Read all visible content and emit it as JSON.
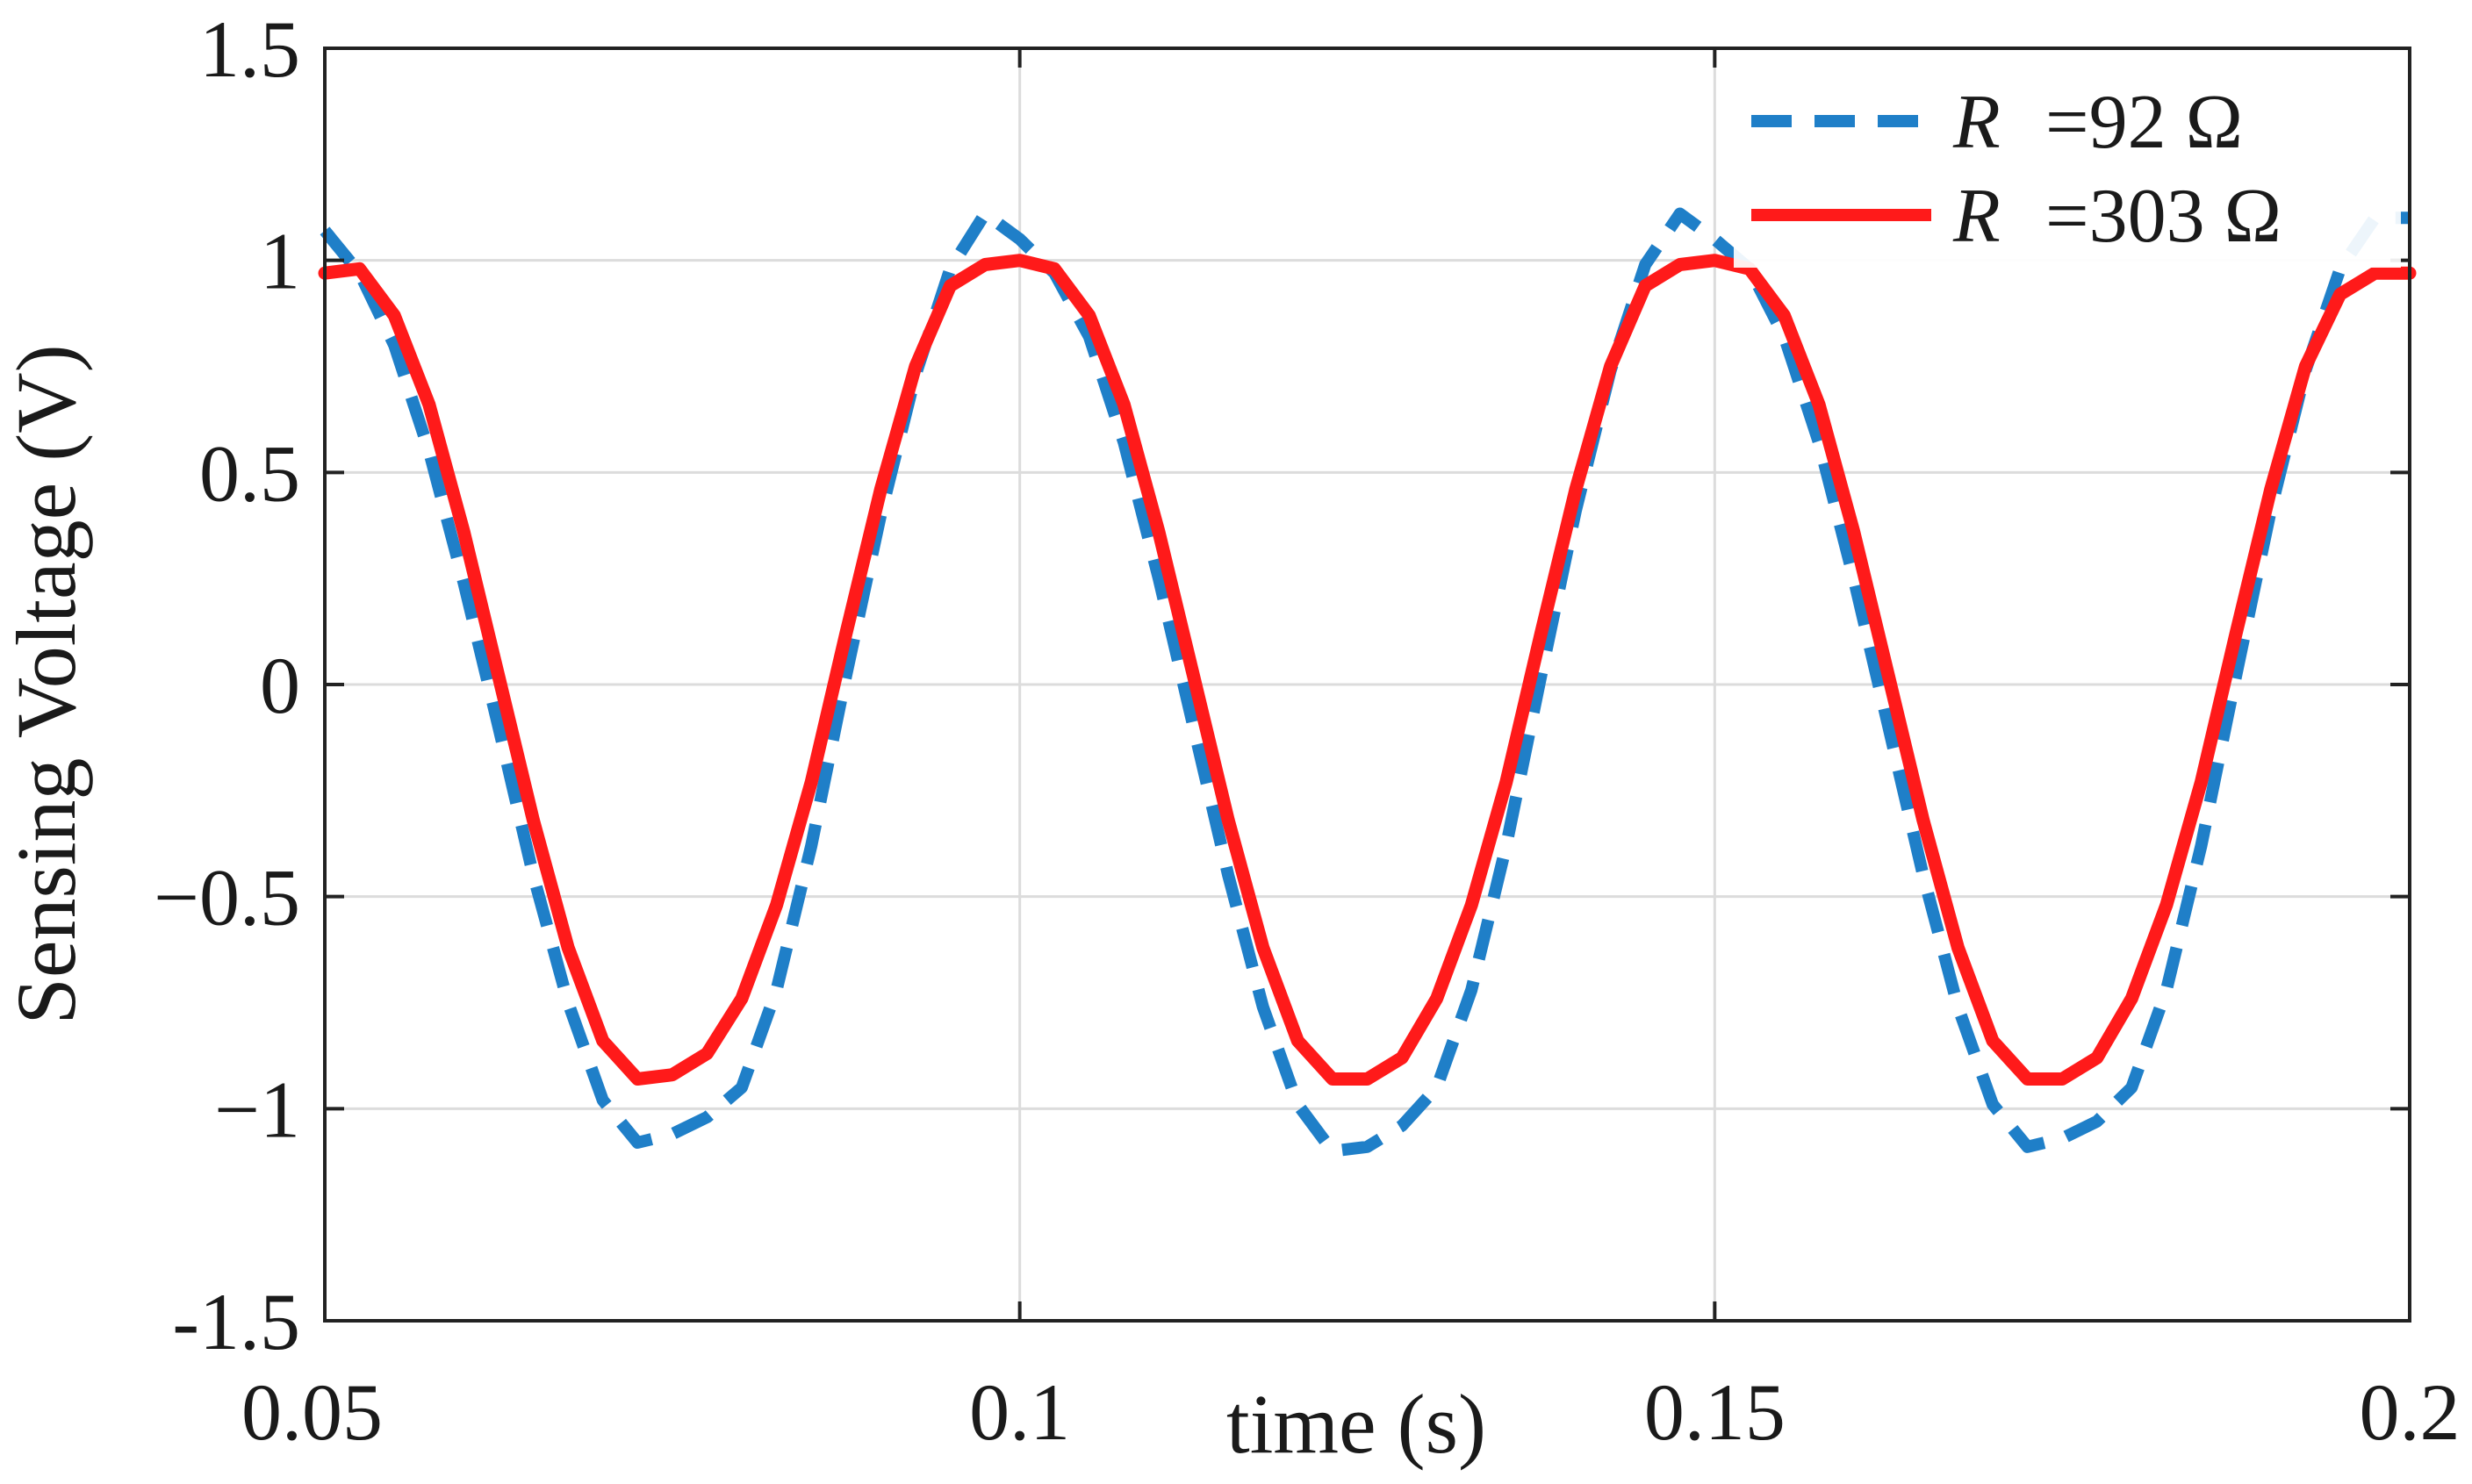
{
  "chart_data": {
    "type": "line",
    "title": "",
    "xlabel": "time (s)",
    "ylabel": "Sensing Voltage (V)",
    "xlim": [
      0.05,
      0.2
    ],
    "ylim": [
      -1.5,
      1.5
    ],
    "grid": true,
    "legend_position": "top-right",
    "x_ticks": [
      0.05,
      0.1,
      0.15,
      0.2
    ],
    "x_tick_labels": [
      "0.05",
      "0.1",
      "0.15",
      "0.2"
    ],
    "y_ticks": [
      1.5,
      1,
      0.5,
      0,
      -0.5,
      -1,
      -1.5
    ],
    "y_tick_labels": [
      "1.5",
      "1",
      "0.5",
      "0",
      "−0.5",
      "−1",
      "-1.5"
    ],
    "series": [
      {
        "name": "R =92 Ω",
        "legend_symbol": "R",
        "legend_value": "=92 Ω",
        "style": "dashed",
        "color": "#1f7fc8",
        "x": [
          0.05,
          0.0525,
          0.055,
          0.0575,
          0.06,
          0.0625,
          0.065,
          0.0675,
          0.07,
          0.0725,
          0.075,
          0.0775,
          0.08,
          0.0825,
          0.085,
          0.0875,
          0.09,
          0.0925,
          0.095,
          0.0975,
          0.1,
          0.1025,
          0.105,
          0.1075,
          0.11,
          0.1125,
          0.115,
          0.1175,
          0.12,
          0.1225,
          0.125,
          0.1275,
          0.13,
          0.1325,
          0.135,
          0.1375,
          0.14,
          0.1425,
          0.145,
          0.1475,
          0.15,
          0.1525,
          0.155,
          0.1575,
          0.16,
          0.1625,
          0.165,
          0.1675,
          0.17,
          0.1725,
          0.175,
          0.1775,
          0.18,
          0.1825,
          0.185,
          0.1875,
          0.19,
          0.1925,
          0.195,
          0.1975,
          0.2
        ],
        "y": [
          1.07,
          0.97,
          0.8,
          0.55,
          0.24,
          -0.1,
          -0.45,
          -0.75,
          -0.98,
          -1.08,
          -1.06,
          -1.02,
          -0.95,
          -0.72,
          -0.38,
          0.02,
          0.4,
          0.73,
          0.98,
          1.11,
          1.05,
          0.97,
          0.82,
          0.57,
          0.25,
          -0.1,
          -0.45,
          -0.76,
          -0.99,
          -1.1,
          -1.09,
          -1.04,
          -0.95,
          -0.72,
          -0.38,
          0.02,
          0.41,
          0.74,
          0.99,
          1.11,
          1.05,
          0.98,
          0.82,
          0.57,
          0.25,
          -0.1,
          -0.45,
          -0.76,
          -0.99,
          -1.09,
          -1.07,
          -1.03,
          -0.95,
          -0.72,
          -0.38,
          0.02,
          0.41,
          0.74,
          0.98,
          1.1,
          1.1
        ]
      },
      {
        "name": "R =303 Ω",
        "legend_symbol": "R",
        "legend_value": "=303 Ω",
        "style": "solid",
        "color": "#ff1a1a",
        "x": [
          0.05,
          0.0525,
          0.055,
          0.0575,
          0.06,
          0.0625,
          0.065,
          0.0675,
          0.07,
          0.0725,
          0.075,
          0.0775,
          0.08,
          0.0825,
          0.085,
          0.0875,
          0.09,
          0.0925,
          0.095,
          0.0975,
          0.1,
          0.1025,
          0.105,
          0.1075,
          0.11,
          0.1125,
          0.115,
          0.1175,
          0.12,
          0.1225,
          0.125,
          0.1275,
          0.13,
          0.1325,
          0.135,
          0.1375,
          0.14,
          0.1425,
          0.145,
          0.1475,
          0.15,
          0.1525,
          0.155,
          0.1575,
          0.16,
          0.1625,
          0.165,
          0.1675,
          0.17,
          0.1725,
          0.175,
          0.1775,
          0.18,
          0.1825,
          0.185,
          0.1875,
          0.19,
          0.1925,
          0.195,
          0.1975,
          0.2
        ],
        "y": [
          0.97,
          0.98,
          0.87,
          0.66,
          0.36,
          0.02,
          -0.32,
          -0.62,
          -0.84,
          -0.93,
          -0.92,
          -0.87,
          -0.74,
          -0.52,
          -0.23,
          0.12,
          0.46,
          0.75,
          0.94,
          0.99,
          1.0,
          0.98,
          0.87,
          0.66,
          0.36,
          0.02,
          -0.32,
          -0.62,
          -0.84,
          -0.93,
          -0.93,
          -0.88,
          -0.74,
          -0.52,
          -0.23,
          0.12,
          0.46,
          0.75,
          0.94,
          0.99,
          1.0,
          0.98,
          0.87,
          0.66,
          0.36,
          0.02,
          -0.32,
          -0.62,
          -0.84,
          -0.93,
          -0.93,
          -0.88,
          -0.74,
          -0.52,
          -0.23,
          0.12,
          0.46,
          0.75,
          0.92,
          0.97,
          0.97
        ]
      }
    ]
  }
}
